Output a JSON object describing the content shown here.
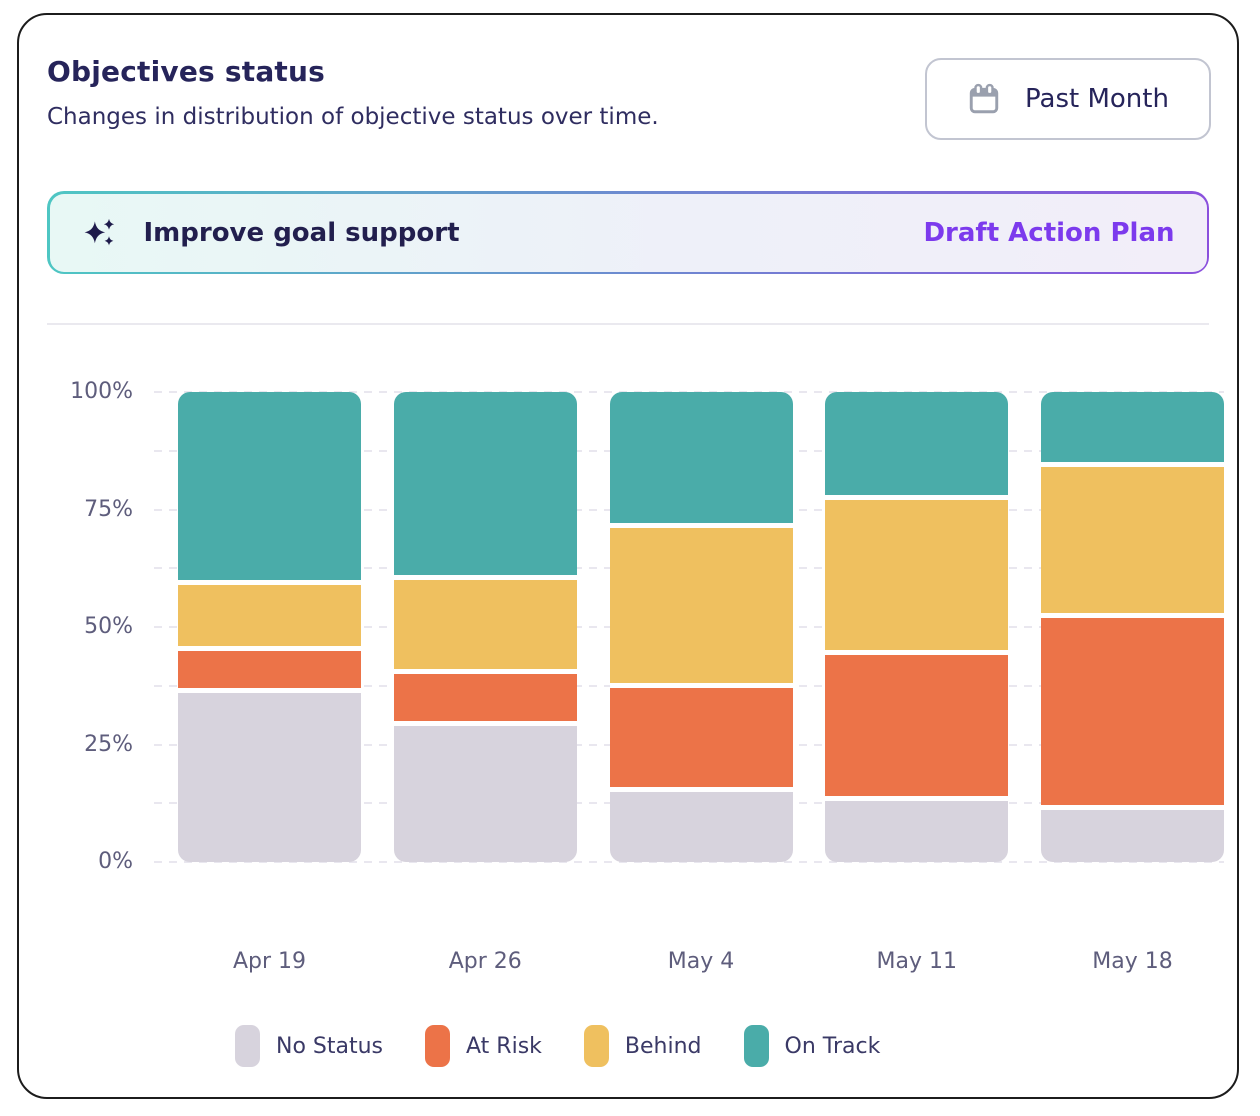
{
  "card": {
    "title": "Objectives status",
    "subtitle": "Changes in distribution of objective status over time.",
    "period_button": {
      "icon": "calendar-icon",
      "label": "Past Month"
    }
  },
  "insight_banner": {
    "icon": "sparkles-icon",
    "label": "Improve goal support",
    "action_label": "Draft Action Plan",
    "accent_colors": {
      "border_left": "#4ec6c3",
      "border_right": "#8b50dd",
      "action_text": "#7c3aed"
    }
  },
  "chart_data": {
    "type": "bar",
    "stacked": true,
    "unit": "percent",
    "categories": [
      "Apr 19",
      "Apr 26",
      "May 4",
      "May 11",
      "May 18"
    ],
    "series": [
      {
        "name": "No Status",
        "color": "#d7d3dd",
        "values": [
          36,
          29,
          15,
          13,
          11
        ]
      },
      {
        "name": "At Risk",
        "color": "#ec7348",
        "values": [
          9,
          11,
          22,
          31,
          41
        ]
      },
      {
        "name": "Behind",
        "color": "#efc05f",
        "values": [
          14,
          20,
          34,
          33,
          32
        ]
      },
      {
        "name": "On Track",
        "color": "#4aaca9",
        "values": [
          41,
          40,
          29,
          23,
          16
        ]
      }
    ],
    "ylim": [
      0,
      100
    ],
    "y_ticks": [
      {
        "label": "100%",
        "value": 100
      },
      {
        "label": "75%",
        "value": 75
      },
      {
        "label": "50%",
        "value": 50
      },
      {
        "label": "25%",
        "value": 25
      },
      {
        "label": "0%",
        "value": 0
      }
    ],
    "gridlines": {
      "orientation": "horizontal",
      "style": "dashed",
      "interval_percent": 12.5,
      "color": "#e9e7ef"
    },
    "legend_position": "bottom",
    "xlabel": "",
    "ylabel": ""
  }
}
